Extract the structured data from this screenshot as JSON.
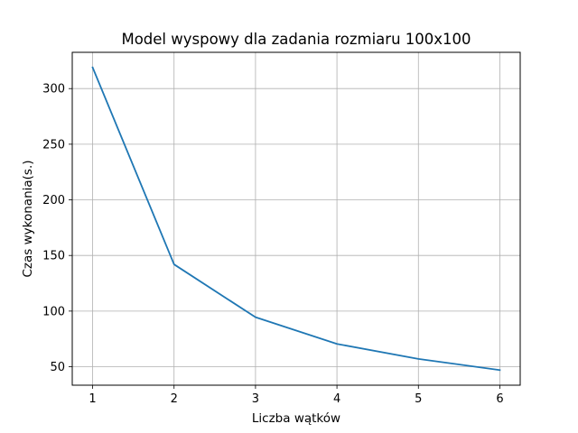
{
  "chart_data": {
    "type": "line",
    "title": "Model wyspowy dla zadania rozmiaru 100x100",
    "xlabel": "Liczba wątków",
    "ylabel": "Czas wykonania(s.)",
    "x": [
      1,
      2,
      3,
      4,
      5,
      6
    ],
    "series": [
      {
        "values": [
          319,
          142,
          94.5,
          70.5,
          57,
          47
        ]
      }
    ],
    "xticks": [
      "1",
      "2",
      "3",
      "4",
      "5",
      "6"
    ],
    "yticks": [
      "50",
      "100",
      "150",
      "200",
      "250",
      "300"
    ],
    "xlim": [
      0.75,
      6.25
    ],
    "ylim": [
      33.4,
      332.6
    ],
    "grid": true,
    "colors": {
      "line": "#1f77b4",
      "grid": "#b0b0b0",
      "axes": "#000000"
    }
  }
}
